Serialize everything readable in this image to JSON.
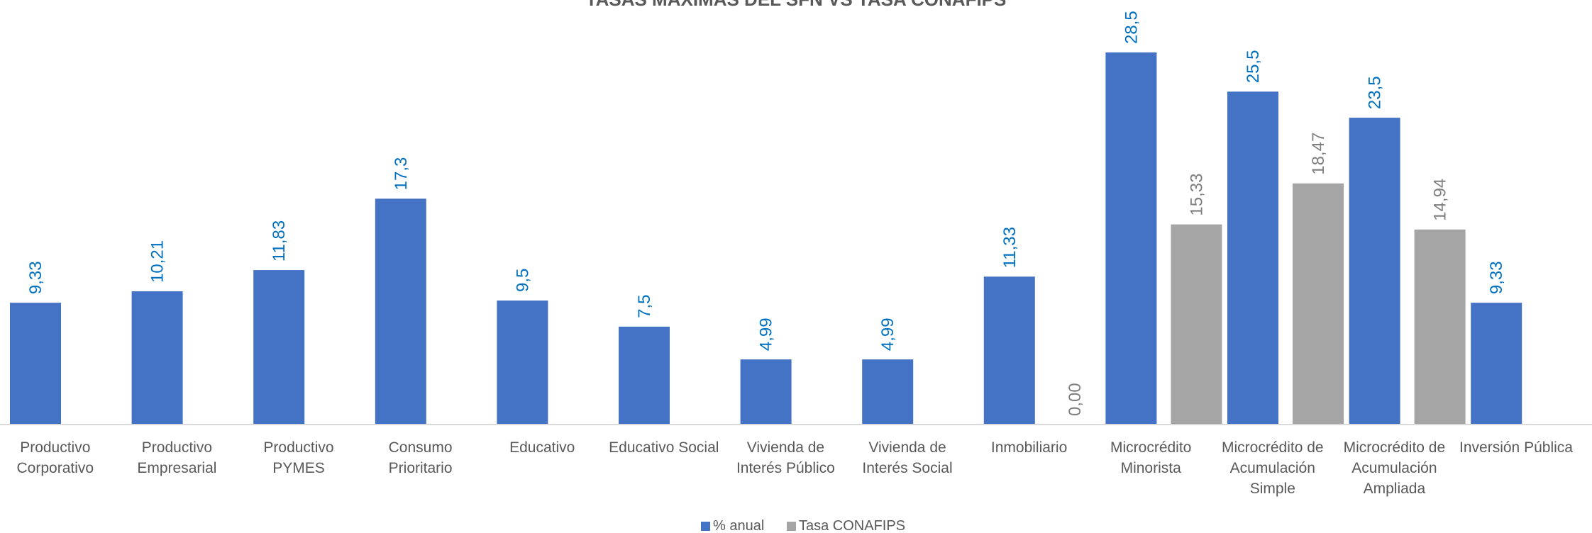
{
  "chart_data": {
    "type": "bar",
    "title": "TASAS MAXIMAS DEL SFN VS TASA CONAFIPS",
    "xlabel": "",
    "ylabel": "",
    "ylim": [
      0,
      30
    ],
    "grid": false,
    "legend_position": "bottom",
    "categories": [
      [
        "Productivo",
        "Corporativo"
      ],
      [
        "Productivo",
        "Empresarial"
      ],
      [
        "Productivo",
        "PYMES"
      ],
      [
        "Consumo",
        "Prioritario"
      ],
      [
        "Educativo"
      ],
      [
        "Educativo Social"
      ],
      [
        "Vivienda de",
        "Interés Público"
      ],
      [
        "Vivienda de",
        "Interés Social"
      ],
      [
        "Inmobiliario"
      ],
      [
        "Microcrédito",
        "Minorista"
      ],
      [
        "Microcrédito de",
        "Acumulación",
        "Simple"
      ],
      [
        "Microcrédito de",
        "Acumulación",
        "Ampliada"
      ],
      [
        "Inversión Pública"
      ]
    ],
    "series": [
      {
        "name": "% anual",
        "color": "#4472C4",
        "label_color": "#0070C0",
        "values": [
          9.33,
          10.21,
          11.83,
          17.3,
          9.5,
          7.5,
          4.99,
          4.99,
          11.33,
          28.5,
          25.5,
          23.5,
          9.33
        ],
        "labels": [
          "9,33",
          "10,21",
          "11,83",
          "17,3",
          "9,5",
          "7,5",
          "4,99",
          "4,99",
          "11,33",
          "28,5",
          "25,5",
          "23,5",
          "9,33"
        ]
      },
      {
        "name": "Tasa CONAFIPS",
        "color": "#A5A5A5",
        "label_color": "#7F7F7F",
        "values": [
          null,
          null,
          null,
          null,
          null,
          null,
          null,
          null,
          0,
          15.33,
          18.47,
          14.94,
          null
        ],
        "labels": [
          null,
          null,
          null,
          null,
          null,
          null,
          null,
          null,
          "0,00",
          "15,33",
          "18,47",
          "14,94",
          null
        ]
      }
    ]
  }
}
